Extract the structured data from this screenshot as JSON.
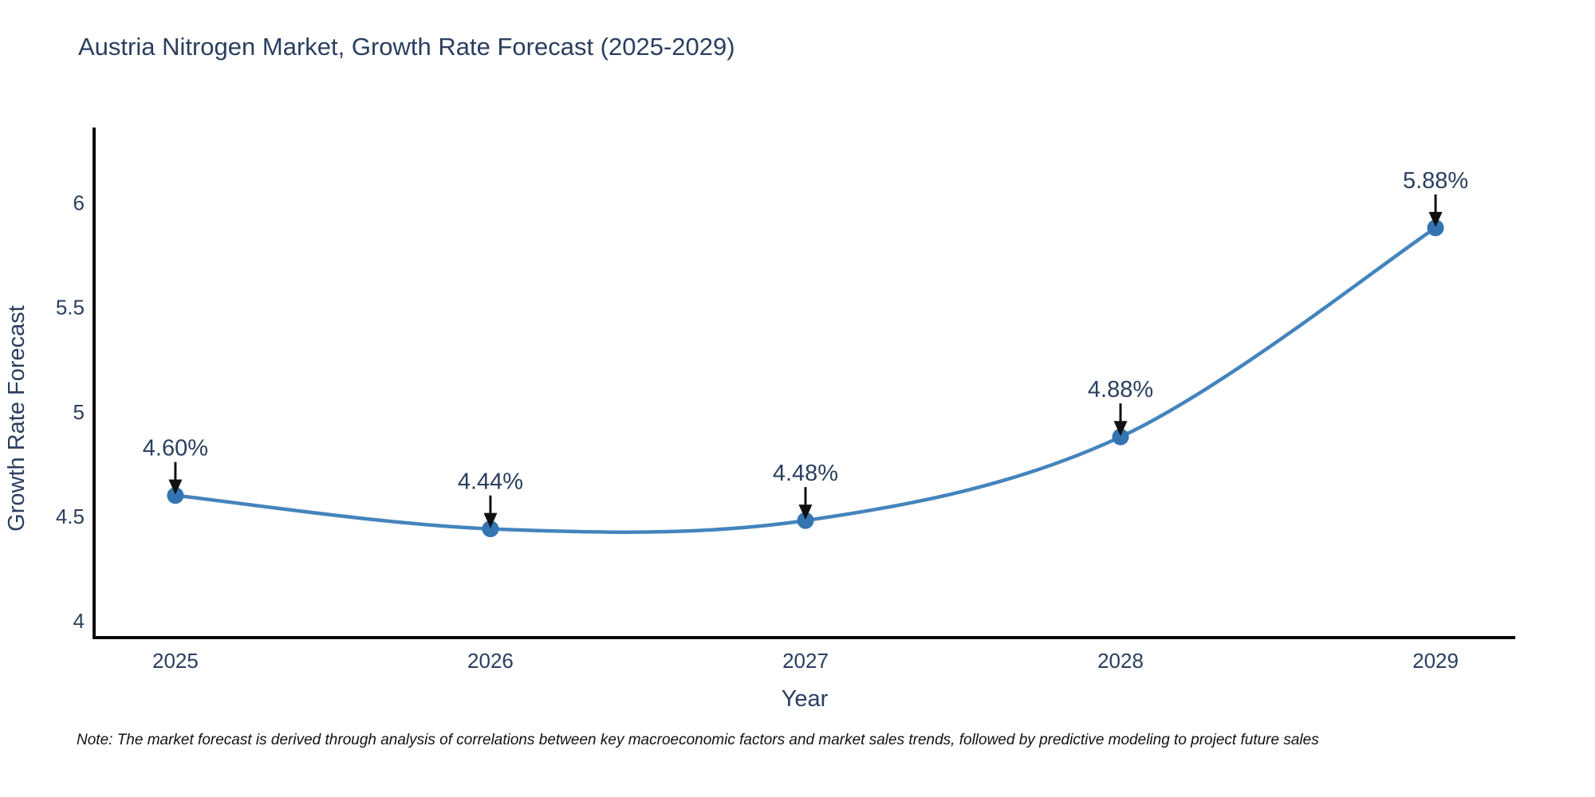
{
  "title": "Austria Nitrogen Market, Growth Rate Forecast (2025-2029)",
  "note": "Note: The market forecast is derived through analysis of correlations between key macroeconomic factors and market sales trends, followed by predictive modeling to project future sales",
  "chart_data": {
    "type": "line",
    "title": "Austria Nitrogen Market, Growth Rate Forecast (2025-2029)",
    "x": [
      2025,
      2026,
      2027,
      2028,
      2029
    ],
    "series": [
      {
        "name": "Growth Rate Forecast",
        "values": [
          4.6,
          4.44,
          4.48,
          4.88,
          5.88
        ]
      }
    ],
    "point_labels": [
      "4.60%",
      "4.44%",
      "4.48%",
      "4.88%",
      "5.88%"
    ],
    "xticks": [
      "2025",
      "2026",
      "2027",
      "2028",
      "2029"
    ],
    "yticks": [
      "4",
      "4.5",
      "5",
      "5.5",
      "6"
    ],
    "xlabel": "Year",
    "ylabel": "Growth Rate Forecast",
    "xlim": [
      2024.742,
      2029.253
    ],
    "ylim": [
      3.92,
      6.36
    ],
    "line_shape": "spline",
    "grid": false,
    "legend_position": "none",
    "colors": {
      "line": "#4484bd",
      "marker": "#3474b1",
      "axis": "#0b0b0b",
      "text": "#2a3f5f",
      "annotation": "#2a3f5f",
      "arrow": "#111111"
    }
  }
}
